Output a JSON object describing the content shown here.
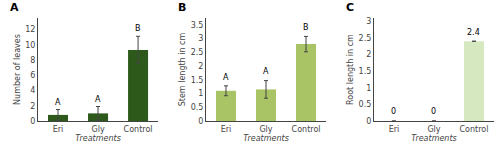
{
  "chart_data": [
    {
      "type": "bar",
      "title": "A",
      "xlabel": "Treatments",
      "ylabel": "Number of leaves",
      "categories": [
        "Eri",
        "Gly",
        "Control"
      ],
      "values": [
        0.8,
        1.0,
        9.3
      ],
      "errors": [
        0.7,
        0.9,
        1.8
      ],
      "color": "#2d5a1b",
      "ylim": [
        0,
        13.5
      ],
      "yticks": [
        0,
        2,
        4,
        6,
        8,
        10,
        12
      ],
      "grid": false,
      "annotations": [
        {
          "x": "Eri",
          "y": 1.6,
          "text": "A"
        },
        {
          "x": "Gly",
          "y": 2.0,
          "text": "A"
        },
        {
          "x": "Control",
          "y": 11.3,
          "text": "B"
        }
      ]
    },
    {
      "type": "bar",
      "title": "B",
      "xlabel": "Treatments",
      "ylabel": "Stem length in cm",
      "categories": [
        "Eri",
        "Gly",
        "Control"
      ],
      "values": [
        1.1,
        1.15,
        2.8
      ],
      "errors": [
        0.18,
        0.32,
        0.28
      ],
      "color": "#a8c464",
      "ylim": [
        0,
        3.75
      ],
      "yticks": [
        0,
        0.5,
        1,
        1.5,
        2,
        2.5,
        3,
        3.5
      ],
      "grid": false,
      "annotations": [
        {
          "x": "Eri",
          "y": 1.35,
          "text": "A"
        },
        {
          "x": "Gly",
          "y": 1.55,
          "text": "A"
        },
        {
          "x": "Control",
          "y": 3.18,
          "text": "B"
        }
      ]
    },
    {
      "type": "bar",
      "title": "C",
      "xlabel": "Treatments",
      "ylabel": "Root length in cm",
      "categories": [
        "Eri",
        "Gly",
        "Control"
      ],
      "values": [
        0.0,
        0.0,
        2.4
      ],
      "errors": [
        0.0,
        0.0,
        0.0
      ],
      "color": "#d5e8c0",
      "ylim": [
        0,
        3.1
      ],
      "yticks": [
        0,
        0.5,
        1,
        1.5,
        2,
        2.5,
        3
      ],
      "grid": false,
      "annotations": [
        {
          "x": "Eri",
          "y": 0.08,
          "text": "0"
        },
        {
          "x": "Gly",
          "y": 0.08,
          "text": "0"
        },
        {
          "x": "Control",
          "y": 2.48,
          "text": "2.4"
        }
      ]
    }
  ]
}
